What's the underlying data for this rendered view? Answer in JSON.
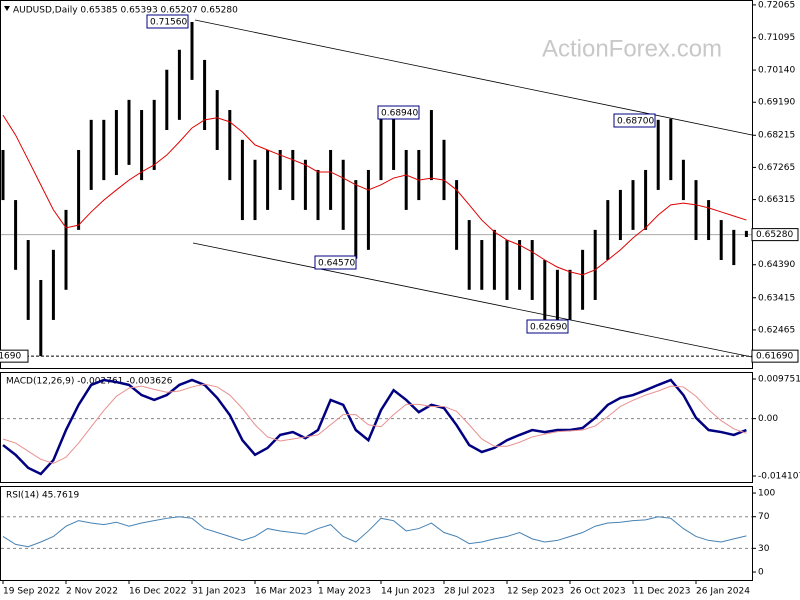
{
  "chart_data": [
    {
      "type": "hilo",
      "title": "AUDUSD,Daily  0.65385 0.65393 0.65207 0.65280",
      "watermark": "ActionForex.com",
      "categories": [
        "19 Sep 2022",
        null,
        null,
        null,
        null,
        "2 Nov 2022",
        null,
        null,
        null,
        null,
        "16 Dec 2022",
        null,
        null,
        null,
        null,
        "31 Jan 2023",
        null,
        null,
        null,
        null,
        "16 Mar 2023",
        null,
        null,
        null,
        null,
        "1 May 2023",
        null,
        null,
        null,
        null,
        "14 Jun 2023",
        null,
        null,
        null,
        null,
        "28 Jul 2023",
        null,
        null,
        null,
        null,
        "12 Sep 2023",
        null,
        null,
        null,
        null,
        "26 Oct 2023",
        null,
        null,
        null,
        null,
        "11 Dec 2023",
        null,
        null,
        null,
        null,
        "26 Jan 2024",
        null,
        null,
        null,
        null
      ],
      "high": [
        0.6778,
        0.663,
        0.6512,
        0.6394,
        0.6483,
        0.6601,
        0.6778,
        0.6867,
        0.6867,
        0.6896,
        0.6926,
        0.6896,
        0.6926,
        0.7015,
        0.7074,
        0.7156,
        0.7044,
        0.6955,
        0.6896,
        0.6808,
        0.6749,
        0.6778,
        0.6778,
        0.6778,
        0.6749,
        0.6719,
        0.6778,
        0.6749,
        0.6689,
        0.6719,
        0.6896,
        0.6894,
        0.6778,
        0.6778,
        0.6896,
        0.6808,
        0.6689,
        0.6571,
        0.6512,
        0.6542,
        0.6512,
        0.6512,
        0.6512,
        0.6453,
        0.6424,
        0.6424,
        0.6483,
        0.6542,
        0.663,
        0.666,
        0.6689,
        0.6719,
        0.6867,
        0.687,
        0.6749,
        0.6689,
        0.663,
        0.6571,
        0.6542,
        0.6539
      ],
      "low": [
        0.663,
        0.6424,
        0.6276,
        0.6169,
        0.6276,
        0.6365,
        0.6542,
        0.666,
        0.6689,
        0.6704,
        0.6734,
        0.6689,
        0.6719,
        0.6837,
        0.6867,
        0.6985,
        0.6837,
        0.6778,
        0.6689,
        0.6571,
        0.6571,
        0.6601,
        0.666,
        0.663,
        0.6601,
        0.6571,
        0.6601,
        0.6542,
        0.6457,
        0.6483,
        0.6689,
        0.6719,
        0.6601,
        0.663,
        0.6689,
        0.663,
        0.6483,
        0.6365,
        0.6365,
        0.6365,
        0.6335,
        0.6365,
        0.6335,
        0.6276,
        0.6269,
        0.6276,
        0.6306,
        0.6335,
        0.6453,
        0.6512,
        0.6542,
        0.6542,
        0.666,
        0.6689,
        0.663,
        0.6512,
        0.6512,
        0.6453,
        0.6438,
        0.6521
      ],
      "ma": [
        0.6881,
        0.6822,
        0.6749,
        0.6675,
        0.6601,
        0.6548,
        0.6556,
        0.6595,
        0.663,
        0.666,
        0.6689,
        0.6713,
        0.6734,
        0.6763,
        0.6802,
        0.6843,
        0.6867,
        0.6873,
        0.6861,
        0.6831,
        0.6793,
        0.6778,
        0.6763,
        0.6749,
        0.6734,
        0.6713,
        0.6713,
        0.6695,
        0.6675,
        0.666,
        0.6675,
        0.6695,
        0.6704,
        0.6689,
        0.6695,
        0.6689,
        0.666,
        0.6616,
        0.6571,
        0.6536,
        0.6512,
        0.6497,
        0.6477,
        0.6453,
        0.6432,
        0.6418,
        0.6409,
        0.6424,
        0.6453,
        0.6483,
        0.6518,
        0.6548,
        0.6586,
        0.6616,
        0.6621,
        0.6616,
        0.6607,
        0.6595,
        0.6583,
        0.6571
      ],
      "bar_color": "#000000",
      "ma_color": "#e00000",
      "ylim": [
        0.6134,
        0.7221
      ],
      "yticks": [
        0.72065,
        0.71095,
        {
          "value": 0.7014,
          "label": "0.70140"
        },
        {
          "value": 0.6919,
          "label": "0.69190"
        },
        0.68215,
        0.67265,
        0.66315,
        {
          "value": 0.6439,
          "label": "0.64390"
        },
        0.63415,
        0.62465
      ],
      "annotations": [
        {
          "value": 0.7156,
          "label": "0.71560"
        },
        {
          "value": 0.6894,
          "label": "0.68940"
        },
        {
          "value": 0.687,
          "label": "0.68700"
        },
        {
          "value": 0.6457,
          "label": "0.64570"
        },
        {
          "value": 0.6269,
          "label": "0.62690"
        }
      ],
      "price_lines": [
        {
          "value": 0.6528,
          "label": "0.65280"
        },
        {
          "value": 0.6169,
          "label": "0.61690"
        }
      ]
    },
    {
      "type": "line",
      "title": "MACD(12,26,9) -0.002761 -0.003626",
      "series": [
        {
          "color": "#000080",
          "values": [
            -0.0065,
            -0.0089,
            -0.0121,
            -0.0136,
            -0.0102,
            -0.0028,
            0.0034,
            0.0083,
            0.0095,
            0.009,
            0.0083,
            0.0058,
            0.0046,
            0.0058,
            0.0083,
            0.0095,
            0.0083,
            0.0051,
            0.0009,
            -0.0053,
            -0.0089,
            -0.0072,
            -0.004,
            -0.0033,
            -0.0048,
            -0.0028,
            0.0046,
            0.0034,
            -0.0028,
            -0.0053,
            0.0021,
            0.007,
            0.0046,
            0.0016,
            0.0034,
            0.0026,
            -0.0016,
            -0.0065,
            -0.0082,
            -0.0072,
            -0.0053,
            -0.004,
            -0.0028,
            -0.0033,
            -0.0028,
            -0.0028,
            -0.0023,
            0.0002,
            0.0034,
            0.0051,
            0.0058,
            0.007,
            0.0083,
            0.0095,
            0.0058,
            0.0002,
            -0.0028,
            -0.0033,
            -0.004,
            -0.0028
          ]
        },
        {
          "color": "#e89090",
          "values": [
            -0.005,
            -0.006,
            -0.008,
            -0.01,
            -0.011,
            -0.0095,
            -0.006,
            -0.002,
            0.002,
            0.0055,
            0.0075,
            0.008,
            0.0072,
            0.0065,
            0.0068,
            0.0078,
            0.0085,
            0.0078,
            0.0058,
            0.0025,
            -0.0015,
            -0.0045,
            -0.0055,
            -0.005,
            -0.0045,
            -0.004,
            -0.0015,
            0.001,
            0.001,
            -0.0015,
            -0.002,
            0.001,
            0.0035,
            0.0035,
            0.003,
            0.003,
            0.0018,
            -0.0015,
            -0.005,
            -0.0068,
            -0.0068,
            -0.0058,
            -0.0045,
            -0.0038,
            -0.0032,
            -0.003,
            -0.0028,
            -0.0018,
            0.0005,
            0.003,
            0.0045,
            0.0058,
            0.0068,
            0.008,
            0.0078,
            0.0055,
            0.0022,
            -0.0005,
            -0.0025,
            -0.0036
          ]
        }
      ],
      "ylim": [
        -0.015583,
        0.011473
      ],
      "yticks": [
        0.009751,
        {
          "value": 0,
          "label": "0.00"
        },
        -0.014107
      ],
      "grid": [
        false,
        true,
        false
      ]
    },
    {
      "type": "line",
      "title": "RSI(14) 45.7619",
      "series": [
        {
          "color": "#4682b4",
          "values": [
            45,
            35,
            32,
            38,
            45,
            58,
            65,
            62,
            60,
            63,
            58,
            62,
            65,
            68,
            70,
            68,
            55,
            50,
            45,
            40,
            45,
            55,
            52,
            50,
            48,
            55,
            60,
            45,
            38,
            52,
            68,
            65,
            52,
            55,
            62,
            50,
            45,
            36,
            38,
            42,
            45,
            50,
            42,
            38,
            40,
            45,
            50,
            58,
            62,
            63,
            65,
            66,
            70,
            68,
            55,
            45,
            40,
            38,
            42,
            45.76
          ]
        }
      ],
      "ylim": [
        -10.1,
        108.9
      ],
      "yticks": [
        100,
        70,
        30,
        0
      ],
      "grid": [
        false,
        true,
        true,
        false
      ]
    }
  ]
}
